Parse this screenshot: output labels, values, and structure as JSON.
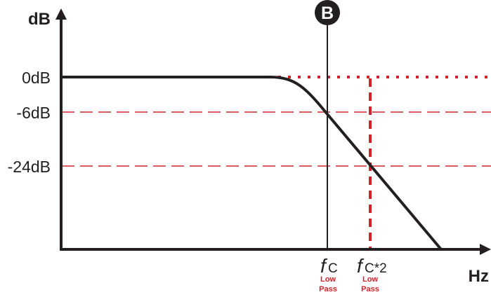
{
  "diagram": {
    "y_axis_label": "dB",
    "x_axis_label": "Hz",
    "marker_label": "B",
    "levels": [
      "0dB",
      "-6dB",
      "-24dB"
    ],
    "fc_symbol": "f",
    "fc_sub": "C",
    "fc2_symbol": "f",
    "fc2_sub": "C*2",
    "fc_note_1": "Low",
    "fc_note_2": "Pass",
    "fc2_note_1": "Low",
    "fc2_note_2": "Pass",
    "colors": {
      "curve": "#231f20",
      "guide": "#d2232a"
    }
  }
}
